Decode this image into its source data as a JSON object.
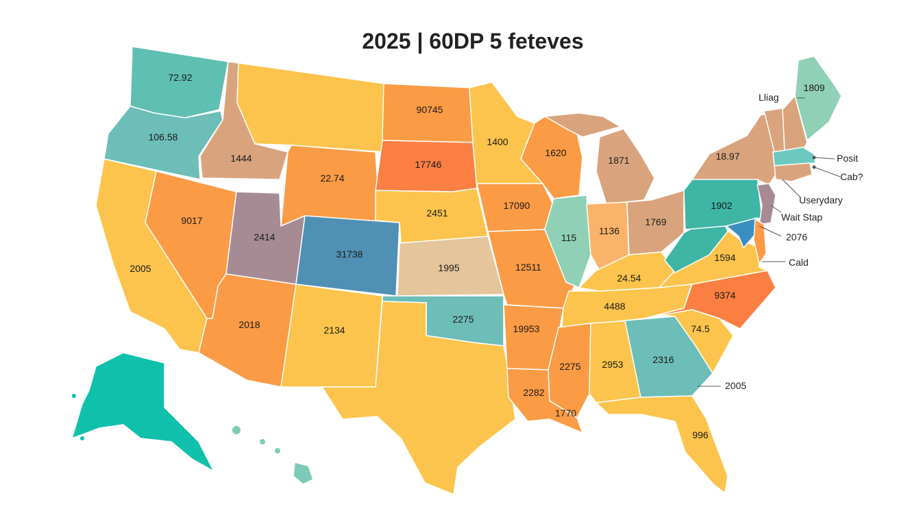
{
  "title": "2025 | 60DP 5 feteves",
  "palette": {
    "teal": "#5fbfb2",
    "yellow": "#fcc44c",
    "orange": "#fb9b45",
    "deep_orange": "#fb7f42",
    "tan": "#d9a47d",
    "purple": "#a68b95",
    "blue": "#5090b5",
    "beige": "#e4c59c",
    "mint": "#8fd0b7",
    "alaska": "#0fc0aa"
  },
  "states": [
    {
      "id": "WA",
      "value": "72.92",
      "color": "#5fbfb2"
    },
    {
      "id": "OR",
      "value": "106.58",
      "color": "#6dbdb8"
    },
    {
      "id": "CA",
      "value": "2005",
      "color": "#fcc44c"
    },
    {
      "id": "ID",
      "value": "1444",
      "color": "#d9a47d"
    },
    {
      "id": "NV",
      "value": "9017",
      "color": "#fb9b45"
    },
    {
      "id": "MT",
      "value": "",
      "color": "#fcc44c"
    },
    {
      "id": "WY",
      "value": "22.74",
      "color": "#fb9b45"
    },
    {
      "id": "UT",
      "value": "2414",
      "color": "#a68b95"
    },
    {
      "id": "CO",
      "value": "31738",
      "color": "#5090b5"
    },
    {
      "id": "AZ",
      "value": "2018",
      "color": "#fb9b45"
    },
    {
      "id": "NM",
      "value": "2134",
      "color": "#fcc44c"
    },
    {
      "id": "ND",
      "value": "90745",
      "color": "#fb9b45"
    },
    {
      "id": "SD",
      "value": "17746",
      "color": "#fb7f42"
    },
    {
      "id": "NE",
      "value": "2451",
      "color": "#fcc44c"
    },
    {
      "id": "KS",
      "value": "1995",
      "color": "#e4c59c"
    },
    {
      "id": "OK",
      "value": "2275",
      "color": "#6dbdb8"
    },
    {
      "id": "TX",
      "value": "",
      "color": "#fcc44c"
    },
    {
      "id": "MN",
      "value": "1400",
      "color": "#fcc44c"
    },
    {
      "id": "IA",
      "value": "17090",
      "color": "#fb9b45"
    },
    {
      "id": "MO",
      "value": "12511",
      "color": "#fb9b45"
    },
    {
      "id": "AR",
      "value": "19953",
      "color": "#fb9b45"
    },
    {
      "id": "LA",
      "value": "2282",
      "color": "#fb9b45"
    },
    {
      "id": "WI",
      "value": "1620",
      "color": "#fb9b45"
    },
    {
      "id": "IL",
      "value": "115",
      "color": "#8fd0b7"
    },
    {
      "id": "MI",
      "value": "1871",
      "color": "#d9a47d"
    },
    {
      "id": "MI_UP",
      "value": "",
      "color": "#d9a47d"
    },
    {
      "id": "IN",
      "value": "1136",
      "color": "#fbb36b"
    },
    {
      "id": "OH",
      "value": "1769",
      "color": "#d9a47d"
    },
    {
      "id": "KY",
      "value": "24.54",
      "color": "#fcc44c"
    },
    {
      "id": "TN",
      "value": "4488",
      "color": "#fcc44c"
    },
    {
      "id": "MS",
      "value": "2275",
      "color": "#fb9b45"
    },
    {
      "id": "AL",
      "value": "2953",
      "color": "#fcc44c"
    },
    {
      "id": "GA",
      "value": "2316",
      "color": "#6dbdb8"
    },
    {
      "id": "FL",
      "value": "996",
      "color": "#fcc44c"
    },
    {
      "id": "SC",
      "value": "74.5",
      "color": "#fcc44c"
    },
    {
      "id": "NC",
      "value": "9374",
      "color": "#fb7f42"
    },
    {
      "id": "VA",
      "value": "1594",
      "color": "#fcc44c"
    },
    {
      "id": "WV",
      "value": "",
      "color": "#3fb5a5"
    },
    {
      "id": "PA",
      "value": "1902",
      "color": "#3fb5a5"
    },
    {
      "id": "NY",
      "value": "18.97",
      "color": "#d9a47d"
    },
    {
      "id": "VT",
      "value": "",
      "color": "#d9a47d"
    },
    {
      "id": "NH",
      "value": "",
      "color": "#d9a47d"
    },
    {
      "id": "ME",
      "value": "1809",
      "color": "#8fd0b7"
    },
    {
      "id": "MA",
      "value": "",
      "color": "#6dc9c0"
    },
    {
      "id": "CT",
      "value": "",
      "color": "#d9a47d"
    },
    {
      "id": "NJ",
      "value": "",
      "color": "#a68b95"
    },
    {
      "id": "MD",
      "value": "",
      "color": "#3a8fc0"
    },
    {
      "id": "DE",
      "value": "",
      "color": "#fb9b45"
    },
    {
      "id": "AK",
      "value": "",
      "color": "#0fc0aa"
    },
    {
      "id": "HI",
      "value": "",
      "color": "#7dcbb6"
    }
  ],
  "callouts": [
    {
      "id": "lliag",
      "text": "Lliag"
    },
    {
      "id": "posit",
      "text": "Posit"
    },
    {
      "id": "cab",
      "text": "Cab?"
    },
    {
      "id": "userydary",
      "text": "Userydary"
    },
    {
      "id": "wait-stap",
      "text": "Wait Stap"
    },
    {
      "id": "n2076",
      "text": "2076"
    },
    {
      "id": "cald",
      "text": "Cald"
    },
    {
      "id": "n2005-se",
      "text": "2005"
    },
    {
      "id": "n1770",
      "text": "1770"
    }
  ]
}
